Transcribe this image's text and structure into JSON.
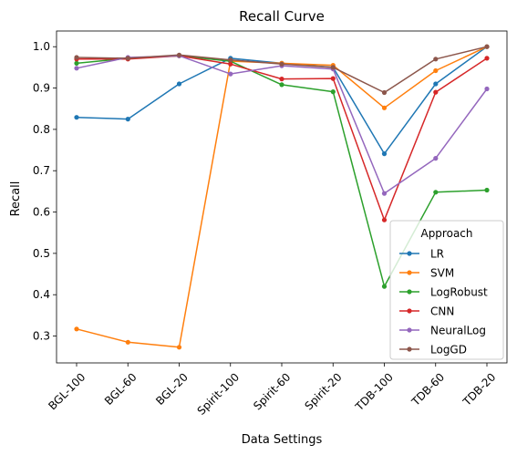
{
  "chart_data": {
    "type": "line",
    "title": "Recall Curve",
    "xlabel": "Data Settings",
    "ylabel": "Recall",
    "categories": [
      "BGL-100",
      "BGL-60",
      "BGL-20",
      "Spirit-100",
      "Spirit-60",
      "Spirit-20",
      "TDB-100",
      "TDB-60",
      "TDB-20"
    ],
    "ylim": [
      0.235,
      1.038
    ],
    "yticks": [
      0.3,
      0.4,
      0.5,
      0.6,
      0.7,
      0.8,
      0.9,
      1.0
    ],
    "ytick_labels": [
      "0.3",
      "0.4",
      "0.5",
      "0.6",
      "0.7",
      "0.8",
      "0.9",
      "1.0"
    ],
    "grid": false,
    "legend": {
      "title": "Approach",
      "placement": "lower right"
    },
    "series": [
      {
        "name": "LR",
        "color": "#1f77b4",
        "values": [
          0.829,
          0.825,
          0.91,
          0.972,
          0.96,
          0.95,
          0.741,
          0.91,
          1.0
        ]
      },
      {
        "name": "SVM",
        "color": "#ff7f0e",
        "values": [
          0.317,
          0.285,
          0.273,
          0.965,
          0.96,
          0.955,
          0.852,
          0.942,
          1.0
        ]
      },
      {
        "name": "LogRobust",
        "color": "#2ca02c",
        "values": [
          0.96,
          0.972,
          0.978,
          0.965,
          0.908,
          0.891,
          0.42,
          0.648,
          0.653
        ]
      },
      {
        "name": "CNN",
        "color": "#d62728",
        "values": [
          0.97,
          0.97,
          0.978,
          0.958,
          0.922,
          0.923,
          0.581,
          0.89,
          0.972
        ]
      },
      {
        "name": "NeuralLog",
        "color": "#9467bd",
        "values": [
          0.948,
          0.974,
          0.978,
          0.934,
          0.954,
          0.946,
          0.645,
          0.73,
          0.898
        ]
      },
      {
        "name": "LogGD",
        "color": "#8c564b",
        "values": [
          0.974,
          0.972,
          0.98,
          0.968,
          0.958,
          0.95,
          0.889,
          0.97,
          1.0
        ]
      }
    ]
  }
}
